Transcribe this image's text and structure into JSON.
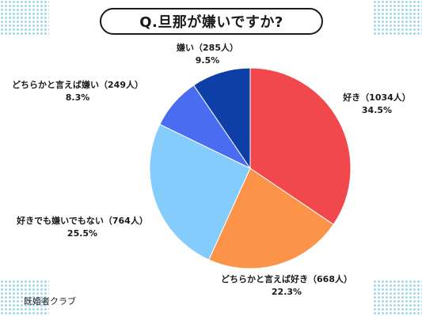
{
  "title": "Q.旦那が嫌いですか?",
  "source": "既婚者クラブ",
  "chart_data": {
    "type": "pie",
    "start_angle_deg": 0,
    "direction": "clockwise",
    "slices": [
      {
        "label": "好き",
        "count_text": "（1034人）",
        "count": 1034,
        "percent": 34.5,
        "percent_text": "34.5%",
        "color": "#f0484c"
      },
      {
        "label": "どちらかと言えば好き",
        "count_text": "（668人）",
        "count": 668,
        "percent": 22.3,
        "percent_text": "22.3%",
        "color": "#fb9448"
      },
      {
        "label": "好きでも嫌いでもない",
        "count_text": "（764人）",
        "count": 764,
        "percent": 25.5,
        "percent_text": "25.5%",
        "color": "#84ccfb"
      },
      {
        "label": "どちらかと言えば嫌い",
        "count_text": "（249人）",
        "count": 249,
        "percent": 8.3,
        "percent_text": "8.3%",
        "color": "#4a6cf0"
      },
      {
        "label": "嫌い",
        "count_text": "（285人）",
        "count": 285,
        "percent": 9.5,
        "percent_text": "9.5%",
        "color": "#0d3fa6"
      }
    ]
  }
}
